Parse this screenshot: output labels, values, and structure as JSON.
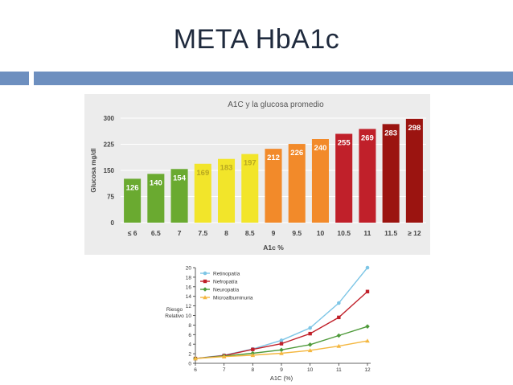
{
  "slide": {
    "title": "META HbA1c",
    "accent_color": "#6d8fbf"
  },
  "chart_data": [
    {
      "type": "bar",
      "title": "A1C y la glucosa promedio",
      "xlabel": "A1c %",
      "ylabel": "Glucosa mg/dl",
      "ylim": [
        0,
        300
      ],
      "yticks": [
        0,
        75,
        150,
        225,
        300
      ],
      "grid": true,
      "categories": [
        "≤ 6",
        "6.5",
        "7",
        "7.5",
        "8",
        "8.5",
        "9",
        "9.5",
        "10",
        "10.5",
        "11",
        "11.5",
        "≥ 12"
      ],
      "values": [
        126,
        140,
        154,
        169,
        183,
        197,
        212,
        226,
        240,
        255,
        269,
        283,
        298
      ],
      "colors": [
        "#6aaa30",
        "#6aaa30",
        "#6aaa30",
        "#f2e52a",
        "#f2e52a",
        "#f2e52a",
        "#f28a2a",
        "#f28a2a",
        "#f28a2a",
        "#c0202a",
        "#c0202a",
        "#9b1410",
        "#9b1410"
      ]
    },
    {
      "type": "line",
      "xlabel": "A1C (%)",
      "ylabel": "Riesgo Relativo",
      "ylabel_lines": [
        "Riesgo",
        "Relativo"
      ],
      "xlim": [
        6,
        12
      ],
      "ylim": [
        0,
        20
      ],
      "x": [
        6,
        7,
        8,
        9,
        10,
        11,
        12
      ],
      "yticks": [
        0,
        2,
        4,
        6,
        8,
        10,
        12,
        14,
        16,
        18,
        20
      ],
      "legend_position": "top-left",
      "series": [
        {
          "name": "Retinopatía",
          "color": "#7ec6e6",
          "marker": "circle",
          "values": [
            1,
            1.7,
            3,
            4.8,
            7.4,
            12.6,
            20
          ]
        },
        {
          "name": "Nefropatía",
          "color": "#c0202a",
          "marker": "square",
          "values": [
            1,
            1.6,
            2.9,
            4.1,
            6.2,
            9.6,
            15
          ]
        },
        {
          "name": "Neuropatía",
          "color": "#4e9a3a",
          "marker": "diamond",
          "values": [
            1,
            1.5,
            2.1,
            2.8,
            3.9,
            5.8,
            7.7
          ]
        },
        {
          "name": "Microalbuminuria",
          "color": "#f4b740",
          "marker": "triangle",
          "values": [
            1,
            1.4,
            1.7,
            2.1,
            2.7,
            3.6,
            4.7
          ]
        }
      ]
    }
  ]
}
